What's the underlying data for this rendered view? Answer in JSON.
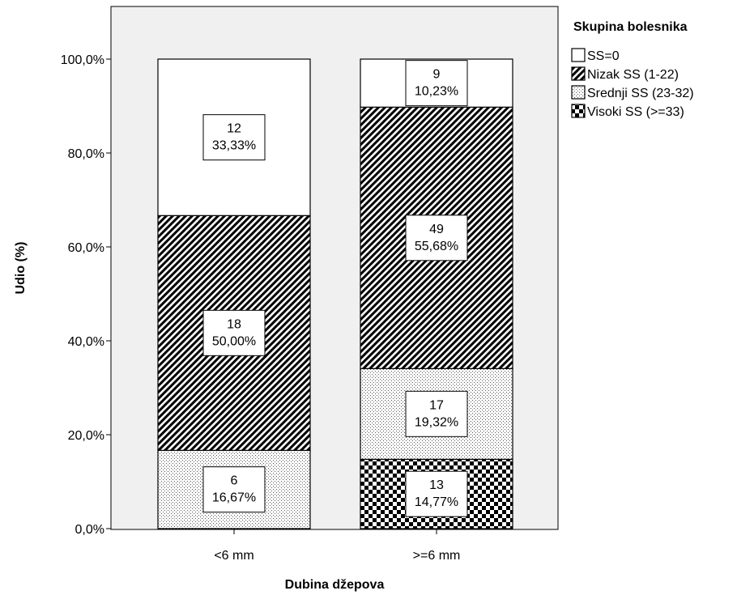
{
  "chart_data": {
    "type": "bar",
    "stacked": true,
    "xlabel": "Dubina džepova",
    "ylabel": "Udio (%)",
    "ylim": [
      0,
      100
    ],
    "y_ticks": [
      0,
      20,
      40,
      60,
      80,
      100
    ],
    "y_tick_labels": [
      "0,0%",
      "20,0%",
      "40,0%",
      "60,0%",
      "80,0%",
      "100,0%"
    ],
    "categories": [
      "<6 mm",
      ">=6 mm"
    ],
    "legend": {
      "title": "Skupina bolesnika",
      "position": "right"
    },
    "grid": false,
    "series": [
      {
        "name": "Visoki SS (>=33)",
        "pattern": "checker",
        "counts": [
          0,
          13
        ],
        "values": [
          0,
          14.77
        ],
        "labels": [
          "",
          "14,77%"
        ]
      },
      {
        "name": "Srednji SS (23-32)",
        "pattern": "dots",
        "counts": [
          6,
          17
        ],
        "values": [
          16.67,
          19.32
        ],
        "labels": [
          "16,67%",
          "19,32%"
        ]
      },
      {
        "name": "Nizak SS (1-22)",
        "pattern": "hatch",
        "counts": [
          18,
          49
        ],
        "values": [
          50.0,
          55.68
        ],
        "labels": [
          "50,00%",
          "55,68%"
        ]
      },
      {
        "name": "SS=0",
        "pattern": "white",
        "counts": [
          12,
          9
        ],
        "values": [
          33.33,
          10.23
        ],
        "labels": [
          "33,33%",
          "10,23%"
        ]
      }
    ],
    "legend_order": [
      "SS=0",
      "Nizak SS (1-22)",
      "Srednji SS (23-32)",
      "Visoki SS (>=33)"
    ],
    "colors": {
      "plot_background": "#f0f0f0",
      "bar_fill": "#ffffff",
      "ink": "#000000"
    }
  }
}
